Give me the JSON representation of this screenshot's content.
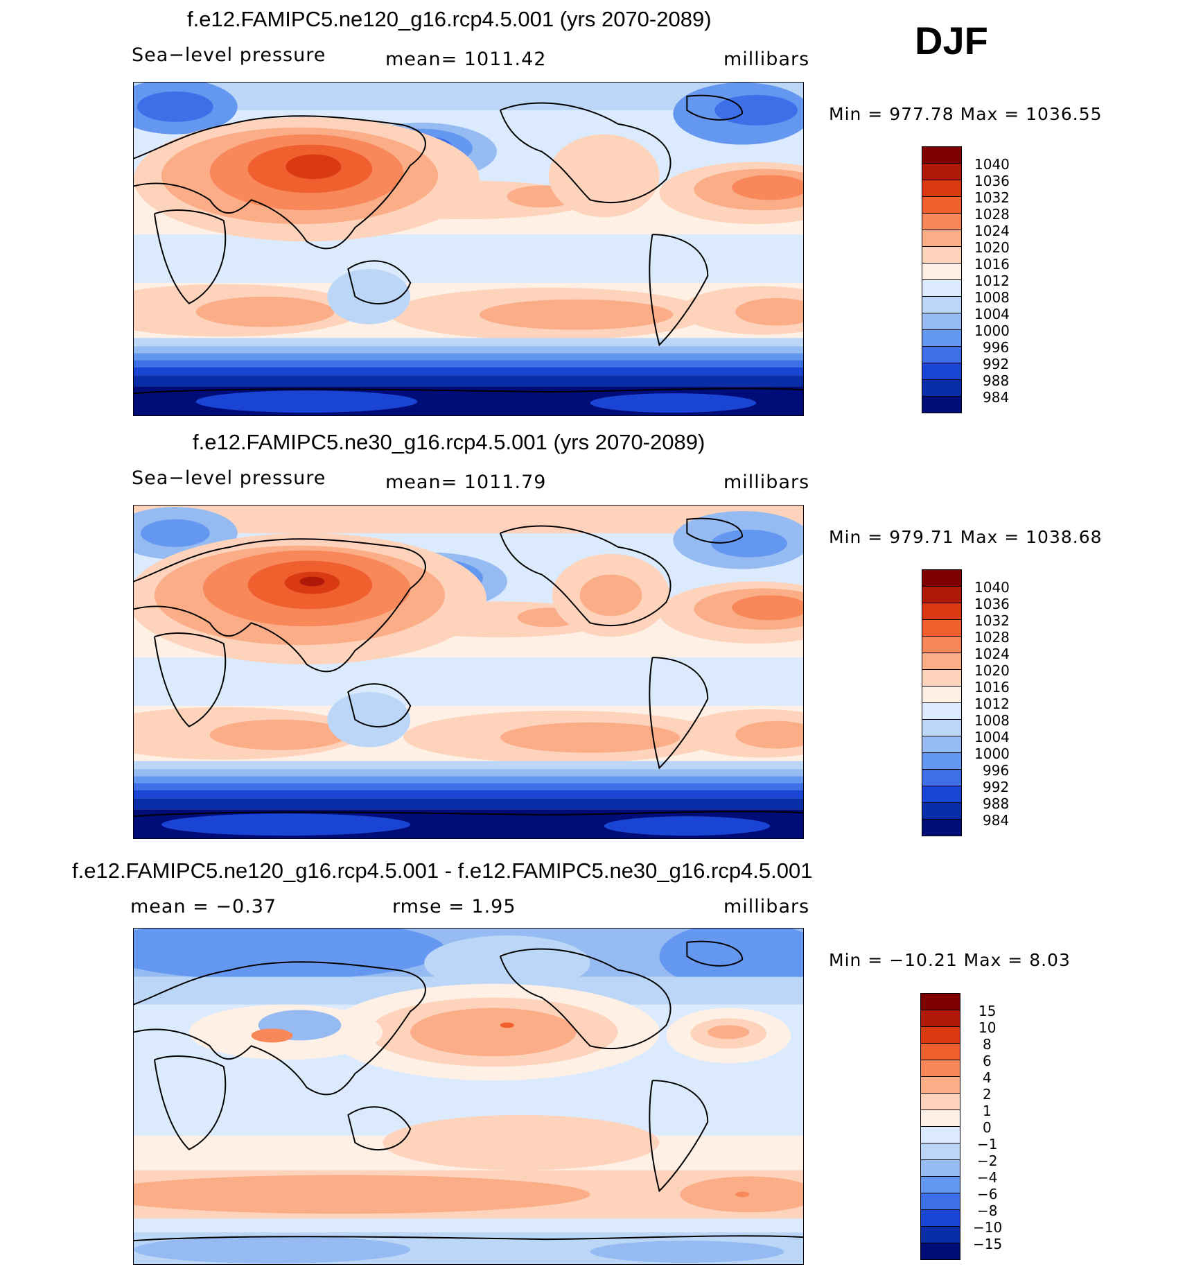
{
  "season": "DJF",
  "panels": [
    {
      "title": "f.e12.FAMIPC5.ne120_g16.rcp4.5.001 (yrs 2070-2089)",
      "left_label": "Sea−level pressure",
      "center_label": "mean=  1011.42",
      "units": "millibars",
      "minmax": "Min  =  977.78  Max  =  1036.55",
      "levels": [
        "1040",
        "1036",
        "1032",
        "1028",
        "1024",
        "1020",
        "1016",
        "1012",
        "1008",
        "1004",
        "1000",
        "996",
        "992",
        "988",
        "984"
      ],
      "colors": [
        "#7f0000",
        "#b0190a",
        "#d93a12",
        "#f0602e",
        "#f8875a",
        "#fbad88",
        "#fdd3bb",
        "#fff0e5",
        "#dbeafc",
        "#bcd6f7",
        "#95bbf2",
        "#6497ef",
        "#3d6fe9",
        "#1a45d4",
        "#0a2da8",
        "#000c78"
      ]
    },
    {
      "title": "f.e12.FAMIPC5.ne30_g16.rcp4.5.001 (yrs 2070-2089)",
      "left_label": "Sea−level pressure",
      "center_label": "mean=  1011.79",
      "units": "millibars",
      "minmax": "Min  =  979.71  Max  =  1038.68",
      "levels": [
        "1040",
        "1036",
        "1032",
        "1028",
        "1024",
        "1020",
        "1016",
        "1012",
        "1008",
        "1004",
        "1000",
        "996",
        "992",
        "988",
        "984"
      ],
      "colors": [
        "#7f0000",
        "#b0190a",
        "#d93a12",
        "#f0602e",
        "#f8875a",
        "#fbad88",
        "#fdd3bb",
        "#fff0e5",
        "#dbeafc",
        "#bcd6f7",
        "#95bbf2",
        "#6497ef",
        "#3d6fe9",
        "#1a45d4",
        "#0a2da8",
        "#000c78"
      ]
    },
    {
      "title": "f.e12.FAMIPC5.ne120_g16.rcp4.5.001 - f.e12.FAMIPC5.ne30_g16.rcp4.5.001",
      "left_label": "mean  =    −0.37",
      "center_label": "rmse  =      1.95",
      "units": "millibars",
      "minmax": "Min  =  −10.21  Max  =      8.03",
      "levels": [
        "15",
        "10",
        "8",
        "6",
        "4",
        "2",
        "1",
        "0",
        "−1",
        "−2",
        "−4",
        "−6",
        "−8",
        "−10",
        "−15"
      ],
      "colors": [
        "#7f0000",
        "#b0190a",
        "#d93a12",
        "#f0602e",
        "#f8875a",
        "#fbad88",
        "#fdd3bb",
        "#fff0e5",
        "#dbeafc",
        "#bcd6f7",
        "#95bbf2",
        "#6497ef",
        "#3d6fe9",
        "#1a45d4",
        "#0a2da8",
        "#000c78"
      ]
    }
  ]
}
